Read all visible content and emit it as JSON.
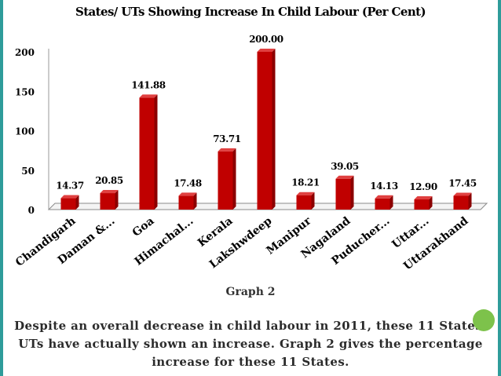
{
  "title": "States/ UTs Showing Increase In Child Labour (Per Cent)",
  "graph_label": "Graph 2",
  "caption": "Despite an overall decrease in child labour in 2011, these 11 States/ UTs have actually shown an increase. Graph 2 gives the percentage increase for these 11 States.",
  "colors": {
    "bar_front": "#c00000",
    "bar_side": "#8b0000",
    "bar_top": "#e04040",
    "frame": "#2f9c9a",
    "page_dot": "#7dc24b"
  },
  "chart_data": {
    "type": "bar",
    "categories": [
      "Chandigarh",
      "Daman &...",
      "Goa",
      "Himachal...",
      "Kerala",
      "Lakshwdeep",
      "Manipur",
      "Nagaland",
      "Puducher...",
      "Uttar...",
      "Uttarakhand"
    ],
    "values": [
      14.37,
      20.85,
      141.88,
      17.48,
      73.71,
      200.0,
      18.21,
      39.05,
      14.13,
      12.9,
      17.45
    ],
    "value_labels": [
      "14.37",
      "20.85",
      "141.88",
      "17.48",
      "73.71",
      "200.00",
      "18.21",
      "39.05",
      "14.13",
      "12.90",
      "17.45"
    ],
    "yticks": [
      "0",
      "50",
      "100",
      "150",
      "200"
    ],
    "ylim": [
      0,
      200
    ],
    "grid": false,
    "legend": "none"
  }
}
